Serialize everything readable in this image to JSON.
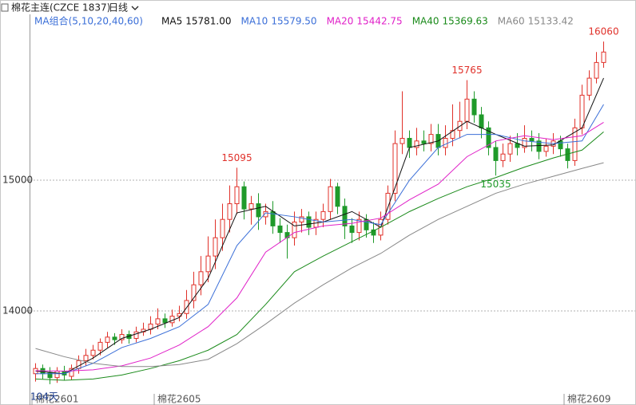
{
  "chart_data": {
    "type": "candlestick",
    "title": "棉花主连(CZCE 1837)",
    "period": "日线",
    "ma_group": "MA组合(5,10,20,40,60)",
    "ylim": [
      13360,
      16256
    ],
    "yticks": [
      14000,
      15000
    ],
    "grid": true,
    "up_color": "#e0312a",
    "down_color": "#1f9a2a",
    "span_label": "104天",
    "x_labels": [
      {
        "index": 0,
        "label": "棉花2601"
      },
      {
        "index": 17,
        "label": "棉花2605"
      },
      {
        "index": 74,
        "label": "棉花2609"
      }
    ],
    "open": [
      13520,
      13560,
      13530,
      13490,
      13540,
      13500,
      13560,
      13620,
      13660,
      13700,
      13760,
      13800,
      13780,
      13820,
      13790,
      13840,
      13860,
      13900,
      13940,
      13910,
      13960,
      13980,
      14080,
      14200,
      14300,
      14420,
      14560,
      14700,
      14820,
      14950,
      14780,
      14820,
      14720,
      14760,
      14650,
      14600,
      14560,
      14680,
      14720,
      14640,
      14700,
      14760,
      14950,
      14800,
      14650,
      14600,
      14700,
      14620,
      14580,
      14700,
      14900,
      15280,
      15320,
      15250,
      15300,
      15280,
      15350,
      15250,
      15320,
      15380,
      15450,
      15620,
      15500,
      15400,
      15250,
      15150,
      15200,
      15280,
      15250,
      15320,
      15300,
      15220,
      15260,
      15300,
      15240,
      15150,
      15400,
      15650,
      15780,
      15900
    ],
    "high": [
      13600,
      13590,
      13570,
      13570,
      13580,
      13590,
      13660,
      13710,
      13740,
      13790,
      13840,
      13830,
      13860,
      13850,
      13880,
      13910,
      13960,
      14020,
      13980,
      14010,
      14040,
      14160,
      14300,
      14420,
      14570,
      14700,
      14820,
      14960,
      15095,
      14990,
      14880,
      14900,
      14820,
      14840,
      14710,
      14660,
      14760,
      14780,
      14760,
      14760,
      14820,
      15010,
      14980,
      14860,
      14710,
      14760,
      14740,
      14680,
      14760,
      14960,
      15380,
      15680,
      15380,
      15400,
      15380,
      15430,
      15430,
      15420,
      15580,
      15600,
      15765,
      15680,
      15560,
      15450,
      15300,
      15280,
      15340,
      15360,
      15420,
      15380,
      15360,
      15320,
      15360,
      15340,
      15280,
      15470,
      15730,
      15840,
      15980,
      16060
    ],
    "low": [
      13460,
      13480,
      13440,
      13450,
      13470,
      13470,
      13520,
      13580,
      13630,
      13660,
      13720,
      13740,
      13750,
      13750,
      13760,
      13810,
      13820,
      13860,
      13870,
      13880,
      13920,
      13940,
      14020,
      14120,
      14220,
      14320,
      14460,
      14600,
      14740,
      14700,
      14660,
      14620,
      14660,
      14590,
      14520,
      14400,
      14500,
      14600,
      14580,
      14580,
      14640,
      14700,
      14740,
      14550,
      14520,
      14540,
      14560,
      14520,
      14540,
      14660,
      14840,
      15200,
      15170,
      15190,
      15220,
      15220,
      15190,
      15190,
      15260,
      15320,
      15390,
      15440,
      15320,
      15190,
      15035,
      15100,
      15140,
      15190,
      15210,
      15220,
      15160,
      15180,
      15200,
      15180,
      15090,
      15110,
      15350,
      15610,
      15740,
      15860
    ],
    "close": [
      13560,
      13520,
      13490,
      13540,
      13510,
      13560,
      13620,
      13660,
      13700,
      13760,
      13800,
      13780,
      13820,
      13790,
      13840,
      13860,
      13900,
      13940,
      13910,
      13960,
      13980,
      14080,
      14200,
      14300,
      14420,
      14560,
      14700,
      14820,
      14950,
      14780,
      14820,
      14720,
      14760,
      14650,
      14600,
      14560,
      14680,
      14720,
      14640,
      14700,
      14760,
      14950,
      14800,
      14650,
      14600,
      14700,
      14620,
      14580,
      14700,
      14900,
      15280,
      15320,
      15250,
      15300,
      15280,
      15350,
      15250,
      15320,
      15380,
      15450,
      15620,
      15500,
      15400,
      15250,
      15150,
      15200,
      15280,
      15250,
      15320,
      15300,
      15220,
      15260,
      15300,
      15240,
      15150,
      15400,
      15650,
      15780,
      15900,
      15980
    ],
    "series": [
      {
        "name": "MA5",
        "color": "#111111",
        "latest": {
          "value": 15781,
          "label": "15781.00"
        },
        "x": [
          0,
          4,
          8,
          12,
          16,
          20,
          24,
          28,
          32,
          36,
          40,
          44,
          48,
          52,
          56,
          60,
          64,
          68,
          72,
          76,
          79
        ],
        "values": [
          13540,
          13520,
          13640,
          13790,
          13860,
          13950,
          14250,
          14750,
          14800,
          14650,
          14680,
          14760,
          14640,
          15250,
          15300,
          15450,
          15350,
          15260,
          15270,
          15400,
          15781
        ]
      },
      {
        "name": "MA10",
        "color": "#3b6fd8",
        "latest": {
          "value": 15579.5,
          "label": "15579.50"
        },
        "x": [
          0,
          4,
          8,
          12,
          16,
          20,
          24,
          28,
          32,
          36,
          40,
          44,
          48,
          52,
          56,
          60,
          64,
          68,
          72,
          76,
          79
        ],
        "values": [
          13520,
          13520,
          13600,
          13720,
          13790,
          13880,
          14050,
          14500,
          14750,
          14720,
          14680,
          14700,
          14660,
          15000,
          15250,
          15350,
          15350,
          15300,
          15280,
          15300,
          15579.5
        ]
      },
      {
        "name": "MA20",
        "color": "#e020c8",
        "latest": {
          "value": 15442.75,
          "label": "15442.75"
        },
        "x": [
          0,
          4,
          8,
          12,
          16,
          20,
          24,
          28,
          32,
          36,
          40,
          44,
          48,
          52,
          56,
          60,
          64,
          68,
          72,
          76,
          79
        ],
        "values": [
          13543,
          13540,
          13550,
          13580,
          13640,
          13740,
          13880,
          14100,
          14450,
          14600,
          14650,
          14670,
          14710,
          14850,
          14970,
          15180,
          15300,
          15340,
          15310,
          15340,
          15442.75
        ]
      },
      {
        "name": "MA40",
        "color": "#1a8a1a",
        "latest": {
          "value": 15369.63,
          "label": "15369.63"
        },
        "x": [
          0,
          4,
          8,
          12,
          16,
          20,
          24,
          28,
          32,
          36,
          40,
          44,
          48,
          52,
          56,
          60,
          64,
          68,
          72,
          76,
          79
        ],
        "values": [
          13480,
          13470,
          13480,
          13510,
          13560,
          13620,
          13700,
          13820,
          14050,
          14300,
          14420,
          14530,
          14640,
          14760,
          14860,
          14950,
          15020,
          15100,
          15170,
          15230,
          15369.63
        ]
      },
      {
        "name": "MA60",
        "color": "#888888",
        "latest": {
          "value": 15133.42,
          "label": "15133.42"
        },
        "x": [
          0,
          4,
          8,
          12,
          16,
          20,
          24,
          28,
          32,
          36,
          40,
          44,
          48,
          52,
          56,
          60,
          64,
          68,
          72,
          76,
          79
        ],
        "values": [
          13713,
          13650,
          13600,
          13575,
          13575,
          13590,
          13630,
          13750,
          13900,
          14060,
          14200,
          14330,
          14440,
          14580,
          14700,
          14800,
          14900,
          14970,
          15030,
          15090,
          15133.42
        ]
      }
    ],
    "annotations": [
      {
        "value": 15095,
        "index": 28,
        "color": "#e0312a",
        "side": "above"
      },
      {
        "value": 15765,
        "index": 60,
        "color": "#e0312a",
        "side": "above"
      },
      {
        "value": 15035,
        "index": 64,
        "color": "#1f9a2a",
        "side": "below"
      },
      {
        "value": 16060,
        "index": 79,
        "color": "#e0312a",
        "side": "above"
      }
    ]
  }
}
